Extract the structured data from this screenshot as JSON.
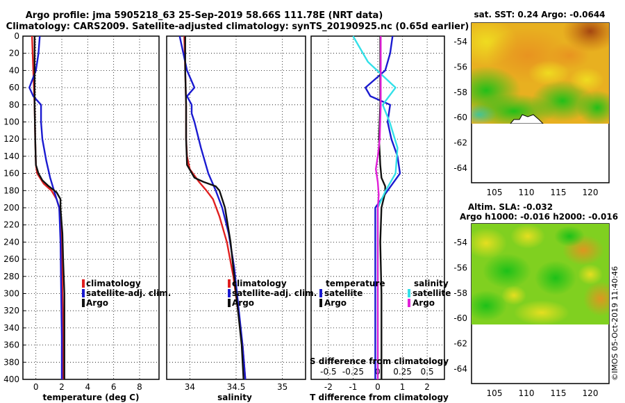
{
  "title": {
    "line1": "Argo profile: jma 5905218_63 25-Sep-2019 58.66S 111.78E (NRT data)",
    "line2": "Climatology: CARS2009. Satellite-adjusted climatology: synTS_20190925.nc (0.65d earlier)"
  },
  "colors": {
    "climatology": "#e02020",
    "satellite": "#1a1ad0",
    "argo": "#111111",
    "sal_satellite": "#33e0e8",
    "sal_argo": "#e020d8"
  },
  "footer_stamp": "©IMOS 05-Oct-2019 11:40:46",
  "chart_data": [
    {
      "type": "line",
      "name": "temperature-profile",
      "xlabel": "temperature (deg C)",
      "xlim": [
        -1,
        9.5
      ],
      "ylim": [
        0,
        400
      ],
      "yticks": [
        0,
        20,
        40,
        60,
        80,
        100,
        120,
        140,
        160,
        180,
        200,
        220,
        240,
        260,
        280,
        300,
        320,
        340,
        360,
        380,
        400
      ],
      "xticks": [
        0,
        2,
        4,
        6,
        8
      ],
      "legend": [
        "climatology",
        "satellite-adj. clim.",
        "Argo"
      ],
      "series": [
        {
          "name": "climatology",
          "color_key": "climatology",
          "points": [
            [
              -0.3,
              0
            ],
            [
              -0.2,
              40
            ],
            [
              -0.1,
              80
            ],
            [
              -0.05,
              120
            ],
            [
              0.0,
              150
            ],
            [
              0.1,
              160
            ],
            [
              0.6,
              172
            ],
            [
              1.2,
              180
            ],
            [
              1.6,
              190
            ],
            [
              1.8,
              200
            ],
            [
              2.0,
              240
            ],
            [
              2.05,
              300
            ],
            [
              2.1,
              350
            ],
            [
              2.1,
              400
            ]
          ]
        },
        {
          "name": "satellite-adj. clim.",
          "color_key": "satellite",
          "points": [
            [
              0.3,
              0
            ],
            [
              0.2,
              20
            ],
            [
              0.0,
              40
            ],
            [
              -0.5,
              60
            ],
            [
              -0.2,
              70
            ],
            [
              0.4,
              80
            ],
            [
              0.4,
              100
            ],
            [
              0.5,
              120
            ],
            [
              0.8,
              145
            ],
            [
              1.1,
              165
            ],
            [
              1.4,
              180
            ],
            [
              1.6,
              190
            ],
            [
              1.8,
              200
            ],
            [
              1.9,
              240
            ],
            [
              1.95,
              300
            ],
            [
              2.0,
              350
            ],
            [
              2.0,
              400
            ]
          ]
        },
        {
          "name": "Argo",
          "color_key": "argo",
          "points": [
            [
              -0.1,
              0
            ],
            [
              -0.1,
              40
            ],
            [
              -0.1,
              80
            ],
            [
              -0.05,
              120
            ],
            [
              0.0,
              150
            ],
            [
              0.2,
              160
            ],
            [
              0.5,
              168
            ],
            [
              1.0,
              175
            ],
            [
              1.6,
              182
            ],
            [
              1.9,
              190
            ],
            [
              1.9,
              200
            ],
            [
              2.05,
              230
            ],
            [
              2.1,
              260
            ],
            [
              2.2,
              300
            ],
            [
              2.2,
              400
            ]
          ]
        }
      ]
    },
    {
      "type": "line",
      "name": "salinity-profile",
      "xlabel": "salinity",
      "xlim": [
        33.75,
        35.25
      ],
      "ylim": [
        0,
        400
      ],
      "xticks": [
        34,
        34.5,
        35
      ],
      "legend": [
        "climatology",
        "satellite-adj. clim.",
        "Argo"
      ],
      "series": [
        {
          "name": "climatology",
          "color_key": "climatology",
          "points": [
            [
              33.94,
              0
            ],
            [
              33.95,
              40
            ],
            [
              33.96,
              80
            ],
            [
              33.96,
              120
            ],
            [
              33.97,
              140
            ],
            [
              34.0,
              155
            ],
            [
              34.1,
              170
            ],
            [
              34.18,
              180
            ],
            [
              34.25,
              190
            ],
            [
              34.32,
              210
            ],
            [
              34.4,
              240
            ],
            [
              34.47,
              280
            ],
            [
              34.52,
              320
            ],
            [
              34.57,
              360
            ],
            [
              34.6,
              400
            ]
          ]
        },
        {
          "name": "satellite-adj. clim.",
          "color_key": "satellite",
          "points": [
            [
              33.89,
              0
            ],
            [
              33.93,
              20
            ],
            [
              33.97,
              40
            ],
            [
              34.05,
              60
            ],
            [
              33.97,
              70
            ],
            [
              34.02,
              80
            ],
            [
              34.02,
              90
            ],
            [
              34.05,
              100
            ],
            [
              34.12,
              130
            ],
            [
              34.2,
              160
            ],
            [
              34.28,
              180
            ],
            [
              34.35,
              200
            ],
            [
              34.42,
              230
            ],
            [
              34.48,
              270
            ],
            [
              34.53,
              320
            ],
            [
              34.57,
              360
            ],
            [
              34.6,
              400
            ]
          ]
        },
        {
          "name": "Argo",
          "color_key": "argo",
          "points": [
            [
              33.95,
              0
            ],
            [
              33.95,
              40
            ],
            [
              33.96,
              80
            ],
            [
              33.96,
              120
            ],
            [
              33.97,
              150
            ],
            [
              34.05,
              165
            ],
            [
              34.15,
              170
            ],
            [
              34.28,
              175
            ],
            [
              34.32,
              180
            ],
            [
              34.38,
              200
            ],
            [
              34.44,
              240
            ],
            [
              34.48,
              280
            ],
            [
              34.52,
              320
            ],
            [
              34.56,
              360
            ],
            [
              34.58,
              400
            ]
          ]
        }
      ]
    },
    {
      "type": "line",
      "name": "difference-profile",
      "xlabel": "T difference from climatology",
      "top_axis_label": "S difference from climatology",
      "xlim": [
        -2.7,
        2.7
      ],
      "ylim": [
        0,
        400
      ],
      "xticks": [
        -2,
        -1,
        0,
        1,
        2
      ],
      "sticks": [
        -0.5,
        -0.25,
        0,
        0.25,
        0.5
      ],
      "legend_temperature_title": "temperature",
      "legend_salinity_title": "salinity",
      "legend_temperature": [
        "satellite",
        "Argo"
      ],
      "legend_salinity": [
        "satellite",
        "Argo"
      ],
      "series": [
        {
          "name": "T satellite",
          "color_key": "satellite",
          "points": [
            [
              0.6,
              0
            ],
            [
              0.5,
              20
            ],
            [
              0.3,
              40
            ],
            [
              -0.5,
              60
            ],
            [
              -0.3,
              70
            ],
            [
              0.5,
              80
            ],
            [
              0.4,
              100
            ],
            [
              0.55,
              120
            ],
            [
              0.8,
              140
            ],
            [
              0.9,
              160
            ],
            [
              0.4,
              180
            ],
            [
              -0.1,
              200
            ],
            [
              -0.1,
              280
            ],
            [
              -0.1,
              400
            ]
          ]
        },
        {
          "name": "T Argo",
          "color_key": "argo",
          "points": [
            [
              0.1,
              0
            ],
            [
              0.1,
              80
            ],
            [
              0.05,
              120
            ],
            [
              0.1,
              150
            ],
            [
              0.15,
              165
            ],
            [
              0.3,
              175
            ],
            [
              0.3,
              182
            ],
            [
              0.15,
              200
            ],
            [
              0.1,
              240
            ],
            [
              0.15,
              300
            ],
            [
              0.15,
              400
            ]
          ]
        },
        {
          "name": "S satellite",
          "color_key": "sal_satellite",
          "points": [
            [
              -0.25,
              0
            ],
            [
              -0.1,
              30
            ],
            [
              0.18,
              60
            ],
            [
              0.05,
              80
            ],
            [
              0.12,
              100
            ],
            [
              0.2,
              130
            ],
            [
              0.18,
              160
            ],
            [
              0.08,
              180
            ],
            [
              0.0,
              200
            ],
            [
              0.0,
              400
            ]
          ]
        },
        {
          "name": "S Argo",
          "color_key": "sal_argo",
          "points": [
            [
              0.03,
              0
            ],
            [
              0.03,
              80
            ],
            [
              0.02,
              120
            ],
            [
              0.0,
              140
            ],
            [
              -0.02,
              155
            ],
            [
              0.0,
              170
            ],
            [
              0.01,
              185
            ],
            [
              0.0,
              200
            ],
            [
              0.0,
              400
            ]
          ]
        }
      ]
    },
    {
      "type": "heatmap",
      "name": "sst-map",
      "title": "sat. SST: 0.24 Argo: -0.0644",
      "xticks": [
        105,
        110,
        115,
        120
      ],
      "yticks": [
        -54,
        -56,
        -58,
        -60,
        -62,
        -64
      ]
    },
    {
      "type": "heatmap",
      "name": "sla-map",
      "title_line1": "Altim. SLA: -0.032",
      "title_line2": "Argo h1000: -0.016 h2000: -0.016",
      "xticks": [
        105,
        110,
        115,
        120
      ],
      "yticks": [
        -54,
        -56,
        -58,
        -60,
        -62,
        -64
      ]
    }
  ]
}
